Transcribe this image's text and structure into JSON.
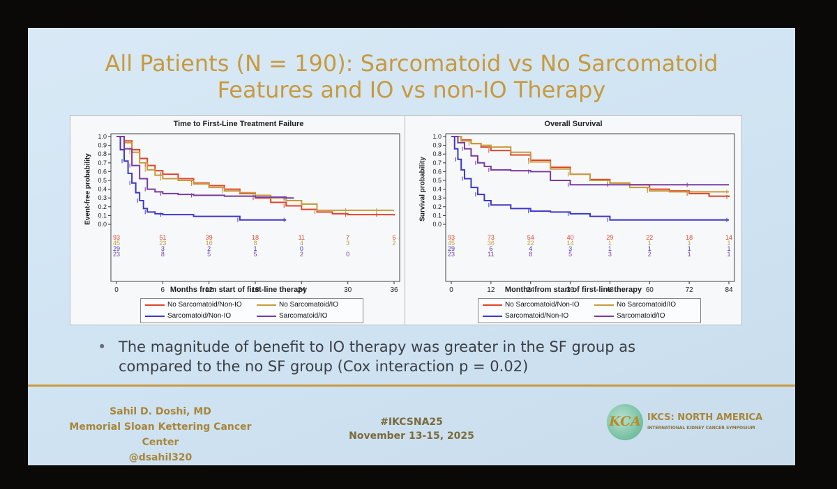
{
  "slide": {
    "title_line1": "All Patients (N = 190): Sarcomatoid vs No Sarcomatoid",
    "title_line2": "Features and IO vs non-IO Therapy",
    "bullet": "The magnitude of benefit to IO therapy was greater in the SF group as compared to the no SF group (Cox interaction p = 0.02)",
    "bullet_line1": "The magnitude of benefit to IO therapy was greater in the SF group as",
    "bullet_line2": "compared to the no SF group (Cox interaction p = 0.02)",
    "presenter_name": "Sahil D. Doshi, MD",
    "presenter_org": "Memorial Sloan Kettering Cancer Center",
    "presenter_handle": "@dsahil320",
    "hashtag": "#IKCSNA25",
    "dates": "November 13-15, 2025",
    "logo_text": "KCA",
    "org_name": "IKCS: NORTH AMERICA",
    "org_subtitle": "INTERNATIONAL KIDNEY CANCER SYMPOSIUM",
    "accent_color": "#c79a3e"
  },
  "legend": {
    "items": [
      {
        "label": "No Sarcomatoid/Non-IO",
        "color": "#e0432a"
      },
      {
        "label": "No Sarcomatoid/IO",
        "color": "#c89a3a"
      },
      {
        "label": "Sarcomatoid/Non-IO",
        "color": "#3b38c8"
      },
      {
        "label": "Sarcomatoid/IO",
        "color": "#7a3aa0"
      }
    ]
  },
  "chart_data": [
    {
      "type": "line",
      "title": "Time to First-Line Treatment Failure",
      "xlabel": "Months from start of first-line therapy",
      "ylabel": "Event-free probability",
      "xlim": [
        0,
        36
      ],
      "ylim": [
        0,
        1
      ],
      "xticks": [
        0,
        6,
        12,
        18,
        24,
        30,
        36
      ],
      "yticks": [
        0,
        0.1,
        0.2,
        0.3,
        0.4,
        0.5,
        0.6,
        0.7,
        0.8,
        0.9,
        1.0
      ],
      "series": [
        {
          "name": "No Sarcomatoid/Non-IO",
          "color": "#e0432a",
          "x": [
            0,
            1,
            2,
            3,
            4,
            5,
            6,
            8,
            10,
            12,
            14,
            16,
            18,
            20,
            22,
            24,
            26,
            28,
            30,
            32,
            34,
            36
          ],
          "y": [
            1.0,
            0.95,
            0.85,
            0.75,
            0.67,
            0.61,
            0.57,
            0.52,
            0.47,
            0.44,
            0.4,
            0.35,
            0.3,
            0.25,
            0.21,
            0.17,
            0.14,
            0.12,
            0.11,
            0.11,
            0.11,
            0.1
          ]
        },
        {
          "name": "No Sarcomatoid/IO",
          "color": "#c89a3a",
          "x": [
            0,
            1,
            2,
            3,
            4,
            5,
            6,
            8,
            10,
            12,
            14,
            16,
            18,
            20,
            22,
            24,
            26,
            28,
            30,
            32,
            34,
            36
          ],
          "y": [
            1.0,
            0.93,
            0.82,
            0.7,
            0.62,
            0.56,
            0.52,
            0.5,
            0.46,
            0.42,
            0.38,
            0.36,
            0.33,
            0.3,
            0.27,
            0.23,
            0.16,
            0.16,
            0.16,
            0.16,
            0.16,
            0.16
          ]
        },
        {
          "name": "Sarcomatoid/Non-IO",
          "color": "#3b38c8",
          "x": [
            0,
            0.5,
            1,
            1.5,
            2,
            2.5,
            3,
            3.5,
            4,
            5,
            6,
            10,
            16,
            20,
            22
          ],
          "y": [
            1.0,
            0.85,
            0.72,
            0.58,
            0.47,
            0.36,
            0.27,
            0.18,
            0.14,
            0.12,
            0.11,
            0.09,
            0.05,
            0.05,
            0.05
          ]
        },
        {
          "name": "Sarcomatoid/IO",
          "color": "#7a3aa0",
          "x": [
            0,
            1,
            2,
            3,
            4,
            5,
            6,
            8,
            10,
            14,
            18,
            20,
            22,
            23
          ],
          "y": [
            1.0,
            0.86,
            0.67,
            0.52,
            0.4,
            0.37,
            0.35,
            0.34,
            0.33,
            0.32,
            0.31,
            0.31,
            0.3,
            0.3
          ]
        }
      ],
      "risk_table": {
        "times": [
          0,
          6,
          12,
          18,
          24,
          30,
          36
        ],
        "rows": [
          {
            "series": "No Sarcomatoid/Non-IO",
            "counts": [
              "93",
              "51",
              "39",
              "18",
              "11",
              "7",
              "6"
            ]
          },
          {
            "series": "No Sarcomatoid/IO",
            "counts": [
              "45",
              "23",
              "16",
              "8",
              "4",
              "3",
              "2"
            ]
          },
          {
            "series": "Sarcomatoid/Non-IO",
            "counts": [
              "29",
              "3",
              "2",
              "1",
              "0",
              "",
              ""
            ]
          },
          {
            "series": "Sarcomatoid/IO",
            "counts": [
              "23",
              "8",
              "5",
              "5",
              "2",
              "0",
              ""
            ]
          }
        ]
      }
    },
    {
      "type": "line",
      "title": "Overall Survival",
      "xlabel": "Months from start of first-line therapy",
      "ylabel": "Survival probability",
      "xlim": [
        0,
        84
      ],
      "ylim": [
        0,
        1
      ],
      "xticks": [
        0,
        12,
        24,
        36,
        48,
        60,
        72,
        84
      ],
      "yticks": [
        0,
        0.1,
        0.2,
        0.3,
        0.4,
        0.5,
        0.6,
        0.7,
        0.8,
        0.9,
        1.0
      ],
      "series": [
        {
          "name": "No Sarcomatoid/Non-IO",
          "color": "#e0432a",
          "x": [
            0,
            3,
            6,
            9,
            12,
            18,
            24,
            30,
            36,
            42,
            48,
            54,
            60,
            66,
            72,
            78,
            84
          ],
          "y": [
            1.0,
            0.96,
            0.92,
            0.88,
            0.84,
            0.79,
            0.73,
            0.65,
            0.57,
            0.51,
            0.47,
            0.45,
            0.4,
            0.38,
            0.35,
            0.32,
            0.31
          ]
        },
        {
          "name": "No Sarcomatoid/IO",
          "color": "#c89a3a",
          "x": [
            0,
            3,
            6,
            9,
            12,
            18,
            24,
            30,
            36,
            42,
            48,
            54,
            60,
            66,
            72,
            78,
            84
          ],
          "y": [
            1.0,
            0.95,
            0.92,
            0.9,
            0.88,
            0.82,
            0.71,
            0.63,
            0.57,
            0.5,
            0.47,
            0.42,
            0.38,
            0.37,
            0.37,
            0.37,
            0.37
          ]
        },
        {
          "name": "Sarcomatoid/Non-IO",
          "color": "#3b38c8",
          "x": [
            0,
            1,
            2,
            3,
            4,
            6,
            8,
            10,
            12,
            18,
            24,
            30,
            36,
            42,
            48,
            60,
            84
          ],
          "y": [
            1.0,
            0.86,
            0.74,
            0.62,
            0.52,
            0.42,
            0.34,
            0.27,
            0.22,
            0.18,
            0.15,
            0.14,
            0.12,
            0.09,
            0.05,
            0.05,
            0.05
          ]
        },
        {
          "name": "Sarcomatoid/IO",
          "color": "#7a3aa0",
          "x": [
            0,
            2,
            4,
            6,
            8,
            10,
            12,
            18,
            24,
            30,
            36,
            42,
            48,
            60,
            72,
            84
          ],
          "y": [
            1.0,
            0.93,
            0.86,
            0.78,
            0.7,
            0.66,
            0.62,
            0.61,
            0.6,
            0.5,
            0.45,
            0.45,
            0.45,
            0.45,
            0.45,
            0.45
          ]
        }
      ],
      "risk_table": {
        "times": [
          0,
          12,
          24,
          36,
          48,
          60,
          72,
          84
        ],
        "rows": [
          {
            "series": "No Sarcomatoid/Non-IO",
            "counts": [
              "93",
              "73",
              "54",
              "40",
              "29",
              "22",
              "18",
              "14"
            ]
          },
          {
            "series": "No Sarcomatoid/IO",
            "counts": [
              "45",
              "36",
              "22",
              "14",
              "1",
              "1",
              "1",
              "1"
            ]
          },
          {
            "series": "Sarcomatoid/Non-IO",
            "counts": [
              "29",
              "6",
              "4",
              "3",
              "1",
              "1",
              "1",
              "1"
            ]
          },
          {
            "series": "Sarcomatoid/IO",
            "counts": [
              "23",
              "11",
              "8",
              "5",
              "3",
              "2",
              "1",
              "1"
            ]
          }
        ]
      }
    }
  ]
}
